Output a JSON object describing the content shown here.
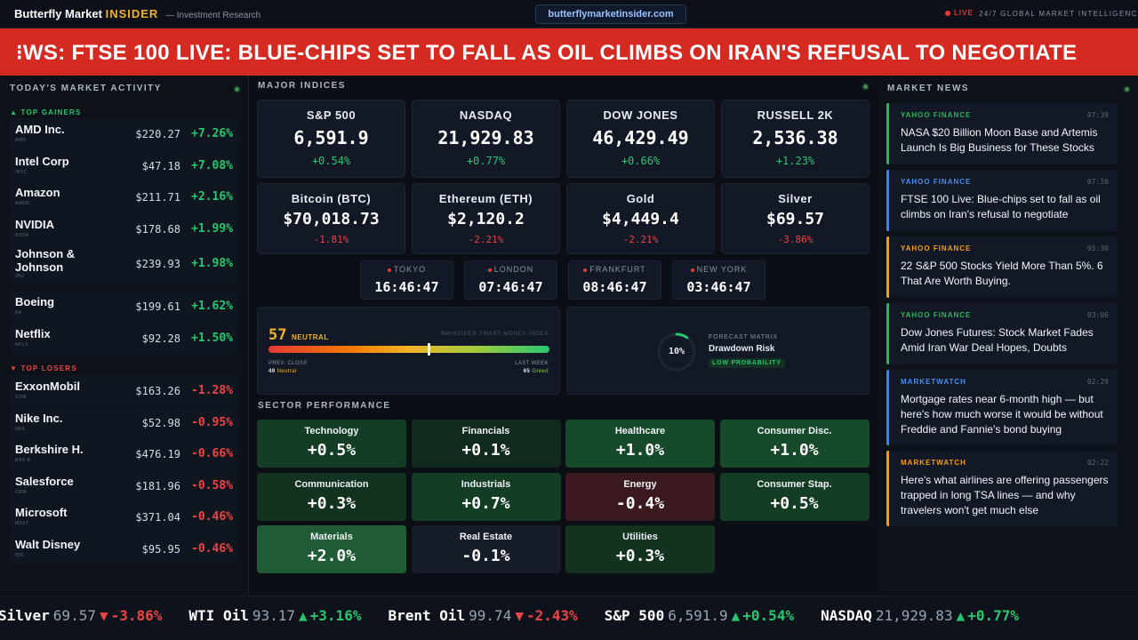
{
  "header": {
    "brand_name": "Butterfly Market",
    "brand_accent": "INSIDER",
    "brand_tagline": "— Investment Research",
    "url": "butterflymarketinsider.com",
    "live_label": "LIVE",
    "tagline": "24/7 GLOBAL MARKET INTELLIGENCE"
  },
  "banner": {
    "text": "⁝WS: FTSE 100 LIVE: BLUE-CHIPS SET TO FALL AS OIL CLIMBS ON IRAN'S REFUSAL TO NEGOTIATE"
  },
  "left": {
    "title": "TODAY'S MARKET ACTIVITY",
    "gainers_label": "▲ TOP GAINERS",
    "losers_label": "▼ TOP LOSERS",
    "gainers": [
      {
        "name": "AMD Inc.",
        "ticker": "AMD",
        "price": "$220.27",
        "change": "+7.26%"
      },
      {
        "name": "Intel Corp",
        "ticker": "INTC",
        "price": "$47.18",
        "change": "+7.08%"
      },
      {
        "name": "Amazon",
        "ticker": "AMZN",
        "price": "$211.71",
        "change": "+2.16%"
      },
      {
        "name": "NVIDIA",
        "ticker": "NVDA",
        "price": "$178.68",
        "change": "+1.99%"
      },
      {
        "name": "Johnson & Johnson",
        "ticker": "JNJ",
        "price": "$239.93",
        "change": "+1.98%"
      },
      {
        "name": "Boeing",
        "ticker": "BA",
        "price": "$199.61",
        "change": "+1.62%"
      },
      {
        "name": "Netflix",
        "ticker": "NFLX",
        "price": "$92.28",
        "change": "+1.50%"
      }
    ],
    "losers": [
      {
        "name": "ExxonMobil",
        "ticker": "XOM",
        "price": "$163.26",
        "change": "-1.28%"
      },
      {
        "name": "Nike Inc.",
        "ticker": "NKE",
        "price": "$52.98",
        "change": "-0.95%"
      },
      {
        "name": "Berkshire H.",
        "ticker": "BRK-B",
        "price": "$476.19",
        "change": "-0.66%"
      },
      {
        "name": "Salesforce",
        "ticker": "CRM",
        "price": "$181.96",
        "change": "-0.58%"
      },
      {
        "name": "Microsoft",
        "ticker": "MSFT",
        "price": "$371.04",
        "change": "-0.46%"
      },
      {
        "name": "Walt Disney",
        "ticker": "DIS",
        "price": "$95.95",
        "change": "-0.46%"
      }
    ]
  },
  "indices": {
    "title": "MAJOR INDICES",
    "items": [
      {
        "name": "S&P 500",
        "value": "6,591.9",
        "change": "+0.54%",
        "dir": "up"
      },
      {
        "name": "NASDAQ",
        "value": "21,929.83",
        "change": "+0.77%",
        "dir": "up"
      },
      {
        "name": "DOW JONES",
        "value": "46,429.49",
        "change": "+0.66%",
        "dir": "up"
      },
      {
        "name": "RUSSELL 2K",
        "value": "2,536.38",
        "change": "+1.23%",
        "dir": "up"
      },
      {
        "name": "Bitcoin (BTC)",
        "value": "$70,018.73",
        "change": "-1.81%",
        "dir": "down"
      },
      {
        "name": "Ethereum (ETH)",
        "value": "$2,120.2",
        "change": "-2.21%",
        "dir": "down"
      },
      {
        "name": "Gold",
        "value": "$4,449.4",
        "change": "-2.21%",
        "dir": "down"
      },
      {
        "name": "Silver",
        "value": "$69.57",
        "change": "-3.86%",
        "dir": "down"
      }
    ]
  },
  "clocks": [
    {
      "city": "TOKYO",
      "time": "16:46:47"
    },
    {
      "city": "LONDON",
      "time": "07:46:47"
    },
    {
      "city": "FRANKFURT",
      "time": "08:46:47"
    },
    {
      "city": "NEW YORK",
      "time": "03:46:47"
    }
  ],
  "sentiment": {
    "value": "57",
    "label": "NEUTRAL",
    "index_name": "BMINSIDER SMART MONEY INDEX",
    "level": 0.57,
    "prev_label": "PREV. CLOSE",
    "prev_value": "49",
    "prev_word": "Neutral",
    "week_label": "LAST WEEK",
    "week_value": "65",
    "week_word": "Greed"
  },
  "forecast": {
    "percent": "10%",
    "fraction": 0.1,
    "label": "FORECAST MATRIX",
    "risk": "Drawdown Risk",
    "probability": "LOW PROBABILITY"
  },
  "sectors": {
    "title": "SECTOR PERFORMANCE",
    "items": [
      {
        "name": "Technology",
        "value": "+0.5%"
      },
      {
        "name": "Financials",
        "value": "+0.1%"
      },
      {
        "name": "Healthcare",
        "value": "+1.0%"
      },
      {
        "name": "Consumer Disc.",
        "value": "+1.0%"
      },
      {
        "name": "Communication",
        "value": "+0.3%"
      },
      {
        "name": "Industrials",
        "value": "+0.7%"
      },
      {
        "name": "Energy",
        "value": "-0.4%"
      },
      {
        "name": "Consumer Stap.",
        "value": "+0.5%"
      },
      {
        "name": "Materials",
        "value": "+2.0%"
      },
      {
        "name": "Real Estate",
        "value": "-0.1%"
      },
      {
        "name": "Utilities",
        "value": "+0.3%"
      }
    ]
  },
  "news": {
    "title": "MARKET NEWS",
    "items": [
      {
        "source": "YAHOO FINANCE",
        "time": "07:39",
        "headline": "NASA $20 Billion Moon Base and Artemis Launch Is Big Business for These Stocks",
        "accent": "#2fb35a"
      },
      {
        "source": "YAHOO FINANCE",
        "time": "07:16",
        "headline": "FTSE 100 Live: Blue-chips set to fall as oil climbs on Iran's refusal to negotiate",
        "accent": "#3b82f6"
      },
      {
        "source": "YAHOO FINANCE",
        "time": "05:30",
        "headline": "22 S&P 500 Stocks Yield More Than 5%. 6 That Are Worth Buying.",
        "accent": "#f59e0b"
      },
      {
        "source": "YAHOO FINANCE",
        "time": "03:06",
        "headline": "Dow Jones Futures: Stock Market Fades Amid Iran War Deal Hopes, Doubts",
        "accent": "#2fb35a"
      },
      {
        "source": "MARKETWATCH",
        "time": "02:29",
        "headline": "Mortgage rates near 6-month high — but here's how much worse it would be without Freddie and Fannie's bond buying",
        "accent": "#3b82f6"
      },
      {
        "source": "MARKETWATCH",
        "time": "02:22",
        "headline": "Here's what airlines are offering passengers trapped in long TSA lines — and why travelers won't get much else",
        "accent": "#f59e0b"
      }
    ]
  },
  "ticker": [
    {
      "name": "Silver",
      "value": "69.57",
      "arrow": "▼",
      "change": "-3.86%",
      "dir": "down"
    },
    {
      "name": "WTI Oil",
      "value": "93.17",
      "arrow": "▲",
      "change": "+3.16%",
      "dir": "up"
    },
    {
      "name": "Brent Oil",
      "value": "99.74",
      "arrow": "▼",
      "change": "-2.43%",
      "dir": "down"
    },
    {
      "name": "S&P 500",
      "value": "6,591.9",
      "arrow": "▲",
      "change": "+0.54%",
      "dir": "up"
    },
    {
      "name": "NASDAQ",
      "value": "21,929.83",
      "arrow": "▲",
      "change": "+0.77%",
      "dir": "up"
    }
  ],
  "colors": {
    "up": "#28c76f",
    "down": "#ef4444",
    "banner": "#d42a22",
    "accent": "#f0b429"
  }
}
